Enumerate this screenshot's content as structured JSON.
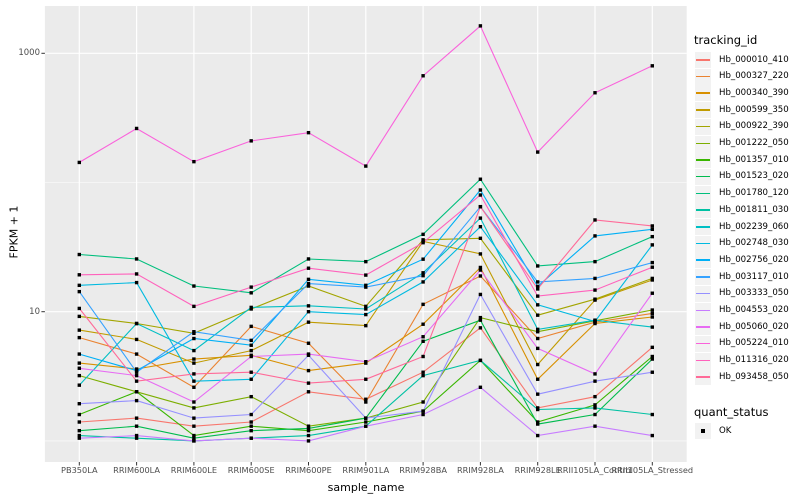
{
  "chart_data": {
    "type": "line",
    "title": "",
    "xlabel": "sample_name",
    "ylabel": "FPKM + 1",
    "y_scale": "log10",
    "y_tick_values": [
      10,
      1000
    ],
    "y_tick_labels": [
      "10",
      "1000"
    ],
    "y_minor_gridline_values": [
      1,
      100
    ],
    "ylim": [
      0.65,
      2300
    ],
    "grid": "on",
    "legend_position": "right",
    "legend_title": "tracking_id",
    "legend2_title": "quant_status",
    "quant_status_label": "OK",
    "point_shape": "square",
    "point_color": "#000000",
    "categories": [
      "PB350LA",
      "RRIM600LA",
      "RRIM600LE",
      "RRIM600SE",
      "RRIM600PE",
      "RRIM901LA",
      "RRIM928BA",
      "RRIM928LA",
      "RRIM928LE",
      "RRII105LA_Control",
      "RRII105LA_Stressed"
    ],
    "series": [
      {
        "name": "Hb_000010_410",
        "color": "#F8766D",
        "values": [
          1.4,
          1.5,
          1.3,
          1.4,
          2.4,
          2.1,
          3.4,
          7.5,
          1.8,
          2.2,
          5.3
        ]
      },
      {
        "name": "Hb_000327_220",
        "color": "#EA8331",
        "values": [
          6.3,
          4.7,
          2.6,
          7.7,
          5.7,
          2.0,
          11.4,
          18.9,
          6.2,
          8.3,
          9.7
        ]
      },
      {
        "name": "Hb_000340_390",
        "color": "#D89000",
        "values": [
          4.0,
          3.6,
          4.3,
          4.6,
          3.5,
          4.0,
          8.0,
          22.0,
          3.0,
          8.1,
          9.1
        ]
      },
      {
        "name": "Hb_000599_350",
        "color": "#C09B00",
        "values": [
          7.2,
          6.1,
          4.0,
          5.0,
          8.3,
          7.8,
          35.0,
          28.0,
          3.9,
          12.3,
          17.6
        ]
      },
      {
        "name": "Hb_000922_390",
        "color": "#A3A500",
        "values": [
          9.2,
          8.1,
          6.8,
          10.5,
          15.8,
          11.0,
          36.0,
          37.0,
          9.4,
          12.5,
          18.1
        ]
      },
      {
        "name": "Hb_001222_050",
        "color": "#7CAE00",
        "values": [
          3.2,
          2.4,
          1.8,
          2.2,
          1.3,
          1.5,
          2.0,
          9.0,
          7.0,
          8.5,
          10.3
        ]
      },
      {
        "name": "Hb_001357_010",
        "color": "#39B600",
        "values": [
          1.6,
          2.4,
          1.1,
          1.3,
          1.2,
          1.4,
          1.7,
          4.2,
          1.4,
          1.9,
          4.5
        ]
      },
      {
        "name": "Hb_001523_020",
        "color": "#00BB4E",
        "values": [
          1.2,
          1.3,
          1.05,
          1.2,
          1.25,
          1.5,
          5.9,
          8.6,
          1.35,
          1.6,
          4.3
        ]
      },
      {
        "name": "Hb_001780_120",
        "color": "#00BF7D",
        "values": [
          27.7,
          25.6,
          15.8,
          14.0,
          25.6,
          24.4,
          39.7,
          106.0,
          22.6,
          24.4,
          38.1
        ]
      },
      {
        "name": "Hb_001811_030",
        "color": "#00C1A3",
        "values": [
          1.1,
          1.05,
          1.0,
          1.05,
          1.1,
          1.3,
          3.2,
          4.2,
          1.75,
          1.8,
          1.6
        ]
      },
      {
        "name": "Hb_002239_060",
        "color": "#00BFC4",
        "values": [
          2.7,
          8.1,
          5.0,
          10.8,
          11.1,
          10.5,
          20.0,
          53.0,
          7.3,
          8.6,
          7.6
        ]
      },
      {
        "name": "Hb_002748_030",
        "color": "#00BAE0",
        "values": [
          16.0,
          16.8,
          2.9,
          3.0,
          10.0,
          9.5,
          17.0,
          45.5,
          11.3,
          8.4,
          32.9
        ]
      },
      {
        "name": "Hb_002756_020",
        "color": "#00B0F6",
        "values": [
          4.7,
          3.5,
          6.2,
          5.5,
          17.8,
          16.0,
          25.5,
          87.5,
          15.7,
          38.6,
          43.4
        ]
      },
      {
        "name": "Hb_003117_010",
        "color": "#35A2FF",
        "values": [
          14.3,
          3.4,
          7.0,
          6.0,
          16.5,
          15.5,
          19.0,
          65.0,
          17.0,
          18.1,
          24.0
        ]
      },
      {
        "name": "Hb_003333_050",
        "color": "#9590FF",
        "values": [
          1.94,
          2.05,
          1.5,
          1.6,
          4.6,
          1.5,
          1.7,
          13.6,
          2.3,
          2.9,
          3.4
        ]
      },
      {
        "name": "Hb_004553_020",
        "color": "#C77CFF",
        "values": [
          1.05,
          1.1,
          1.0,
          1.05,
          1.0,
          1.3,
          1.6,
          2.6,
          1.1,
          1.3,
          1.1
        ]
      },
      {
        "name": "Hb_005060_020",
        "color": "#E76BF3",
        "values": [
          3.65,
          3.2,
          2.0,
          4.5,
          4.7,
          4.1,
          6.4,
          21.0,
          5.2,
          3.3,
          13.9
        ]
      },
      {
        "name": "Hb_005224_010",
        "color": "#FA62DB",
        "values": [
          143,
          262,
          145,
          210,
          243,
          134,
          670,
          1630,
          172,
          495,
          800
        ]
      },
      {
        "name": "Hb_011316_020",
        "color": "#FF62BC",
        "values": [
          19.3,
          19.6,
          11.0,
          15.5,
          21.7,
          19.2,
          34.2,
          80.0,
          13.2,
          14.7,
          22.1
        ]
      },
      {
        "name": "Hb_093458_050",
        "color": "#FF6A98",
        "values": [
          10.6,
          2.9,
          3.3,
          3.4,
          2.8,
          3.0,
          4.5,
          65.0,
          15.0,
          51.3,
          46.1
        ]
      }
    ]
  },
  "colors": {
    "background": "#FFFFFF",
    "panel_bg": "#EBEBEB",
    "grid": "#FFFFFF",
    "tick_label": "#4D4D4D",
    "tick_mark": "#333333",
    "axis_title": "#000000",
    "legend_key_bg": "#F2F2F2",
    "point": "#000000"
  }
}
